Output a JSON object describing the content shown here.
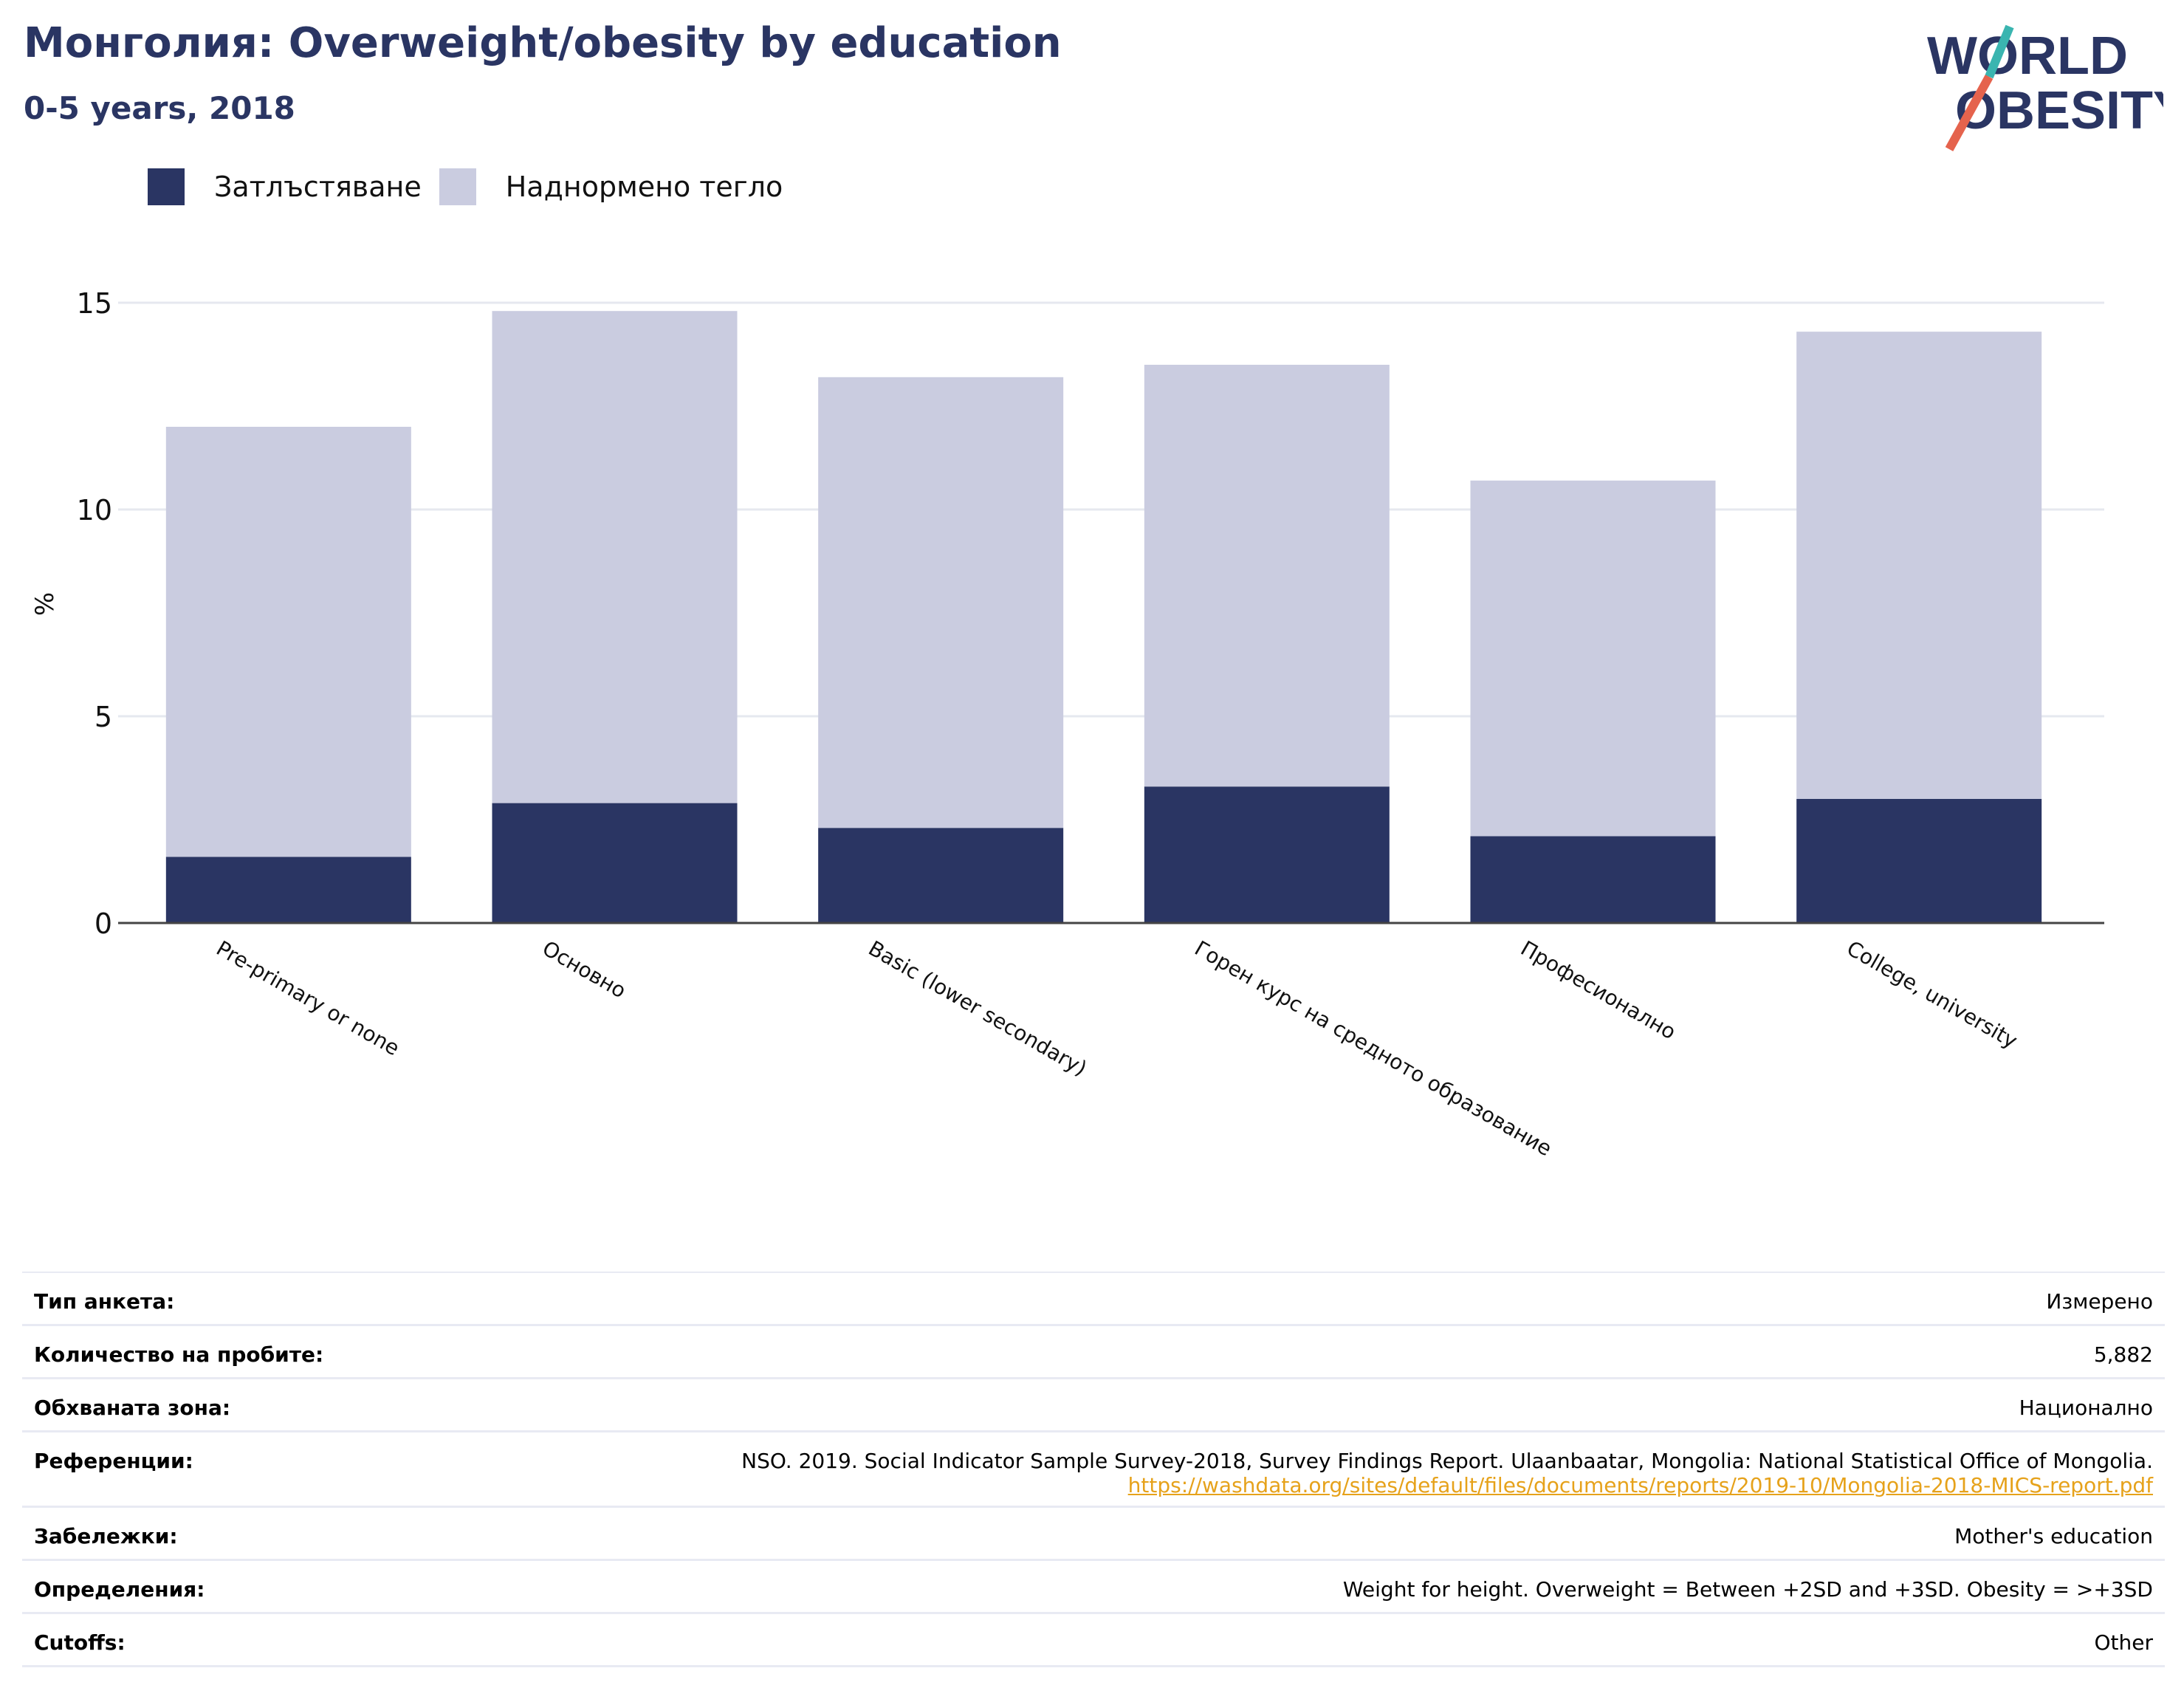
{
  "header": {
    "title": "Монголия: Overweight/obesity by education",
    "subtitle": "0-5 years, 2018"
  },
  "logo": {
    "line1": "WORLD",
    "line2": "OBESITY",
    "colors": {
      "text": "#2a3563",
      "slash_top": "#3ab5b0",
      "slash_bottom": "#e5634d"
    }
  },
  "legend": [
    {
      "label": "Затлъстяване",
      "color": "#2a3563"
    },
    {
      "label": "Наднормено тегло",
      "color": "#cacce0"
    }
  ],
  "chart_data": {
    "type": "bar",
    "stacked": true,
    "categories": [
      "Pre-primary or none",
      "Основно",
      "Basic (lower secondary)",
      "Горен курс на средното образование",
      "Професионално",
      "College, university"
    ],
    "series": [
      {
        "name": "Затлъстяване",
        "values": [
          1.6,
          2.9,
          2.3,
          3.3,
          2.1,
          3.0
        ],
        "color": "#2a3563"
      },
      {
        "name": "Наднормено тегло",
        "values": [
          10.4,
          11.9,
          10.9,
          10.2,
          8.6,
          11.3
        ],
        "color": "#cacce0"
      }
    ],
    "totals": [
      12.0,
      14.8,
      13.2,
      13.5,
      10.7,
      14.3
    ],
    "ylabel": "%",
    "ylim": [
      0,
      15
    ],
    "yticks": [
      0,
      5,
      10,
      15
    ],
    "grid": true,
    "legend_position": "top-left"
  },
  "info": {
    "rows": [
      {
        "label": "Тип анкета:",
        "value": "Измерено"
      },
      {
        "label": "Количество на пробите:",
        "value": "5,882"
      },
      {
        "label": "Обхваната зона:",
        "value": "Национално"
      },
      {
        "label": "Референции:",
        "value": "NSO. 2019. Social Indicator Sample Survey-2018, Survey Findings Report. Ulaanbaatar, Mongolia: National Statistical Office of Mongolia.",
        "link": "https://washdata.org/sites/default/files/documents/reports/2019-10/Mongolia-2018-MICS-report.pdf"
      },
      {
        "label": "Забележки:",
        "value": "Mother's education"
      },
      {
        "label": "Определения:",
        "value": "Weight for height. Overweight = Between +2SD and +3SD. Obesity = >+3SD"
      },
      {
        "label": "Cutoffs:",
        "value": "Other"
      }
    ]
  }
}
